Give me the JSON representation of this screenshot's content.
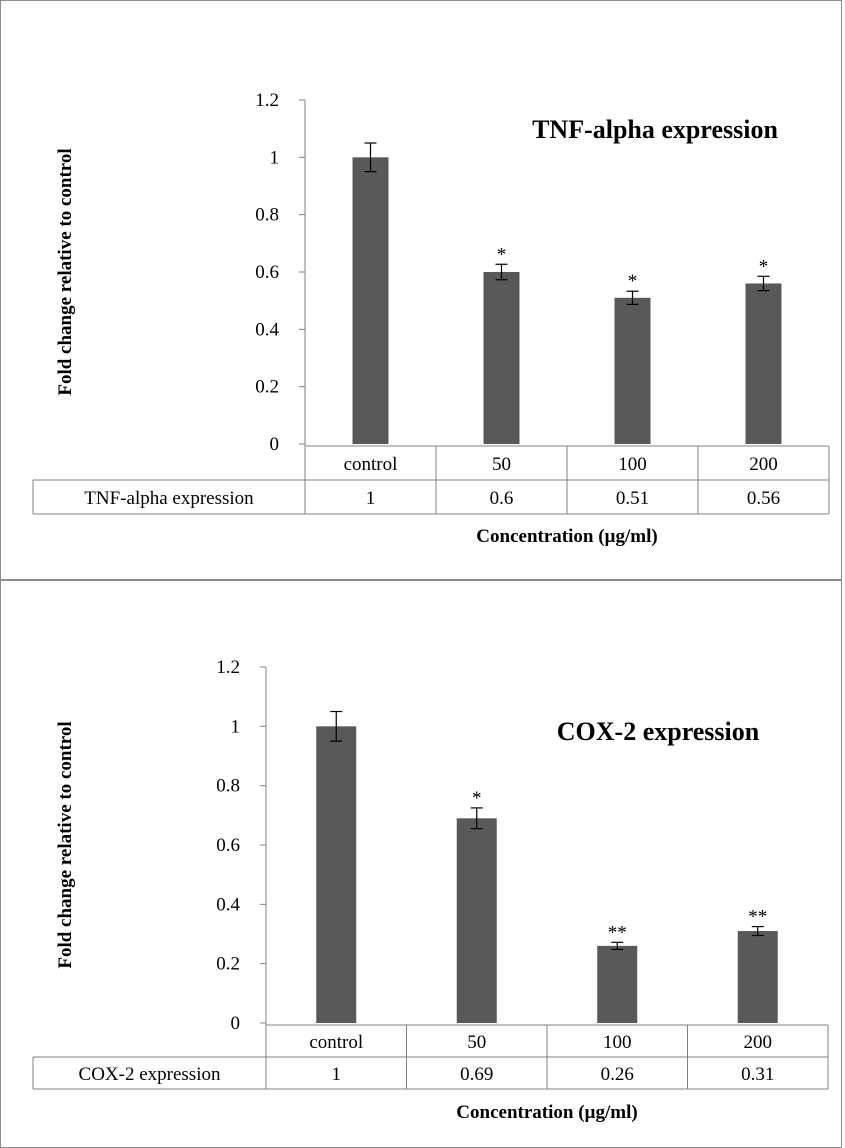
{
  "charts": [
    {
      "type": "bar",
      "title": "TNF-alpha expression",
      "ylabel": "Fold change relative to control",
      "xlabel": "Concentration (µg/ml)",
      "categories": [
        "control",
        "50",
        "100",
        "200"
      ],
      "series": [
        {
          "name": "TNF-alpha expression",
          "values": [
            1,
            0.6,
            0.51,
            0.56
          ]
        }
      ],
      "table_values": [
        "1",
        "0.6",
        "0.51",
        "0.56"
      ],
      "errors": [
        0.05,
        0.027,
        0.023,
        0.025
      ],
      "significance": [
        "",
        "*",
        "*",
        "*"
      ],
      "yticks": [
        "0",
        "0.2",
        "0.4",
        "0.6",
        "0.8",
        "1",
        "1.2"
      ],
      "ylim": [
        0,
        1.2
      ],
      "bar_color": "#595959"
    },
    {
      "type": "bar",
      "title": "COX-2  expression",
      "ylabel": "Fold change relative to control",
      "xlabel": "Concentration (µg/ml)",
      "categories": [
        "control",
        "50",
        "100",
        "200"
      ],
      "series": [
        {
          "name": "COX-2 expression",
          "values": [
            1,
            0.69,
            0.26,
            0.31
          ]
        }
      ],
      "table_values": [
        "1",
        "0.69",
        "0.26",
        "0.31"
      ],
      "errors": [
        0.05,
        0.035,
        0.012,
        0.015
      ],
      "significance": [
        "",
        "*",
        "**",
        "**"
      ],
      "yticks": [
        "0",
        "0.2",
        "0.4",
        "0.6",
        "0.8",
        "1",
        "1.2"
      ],
      "ylim": [
        0,
        1.2
      ],
      "bar_color": "#595959"
    }
  ]
}
